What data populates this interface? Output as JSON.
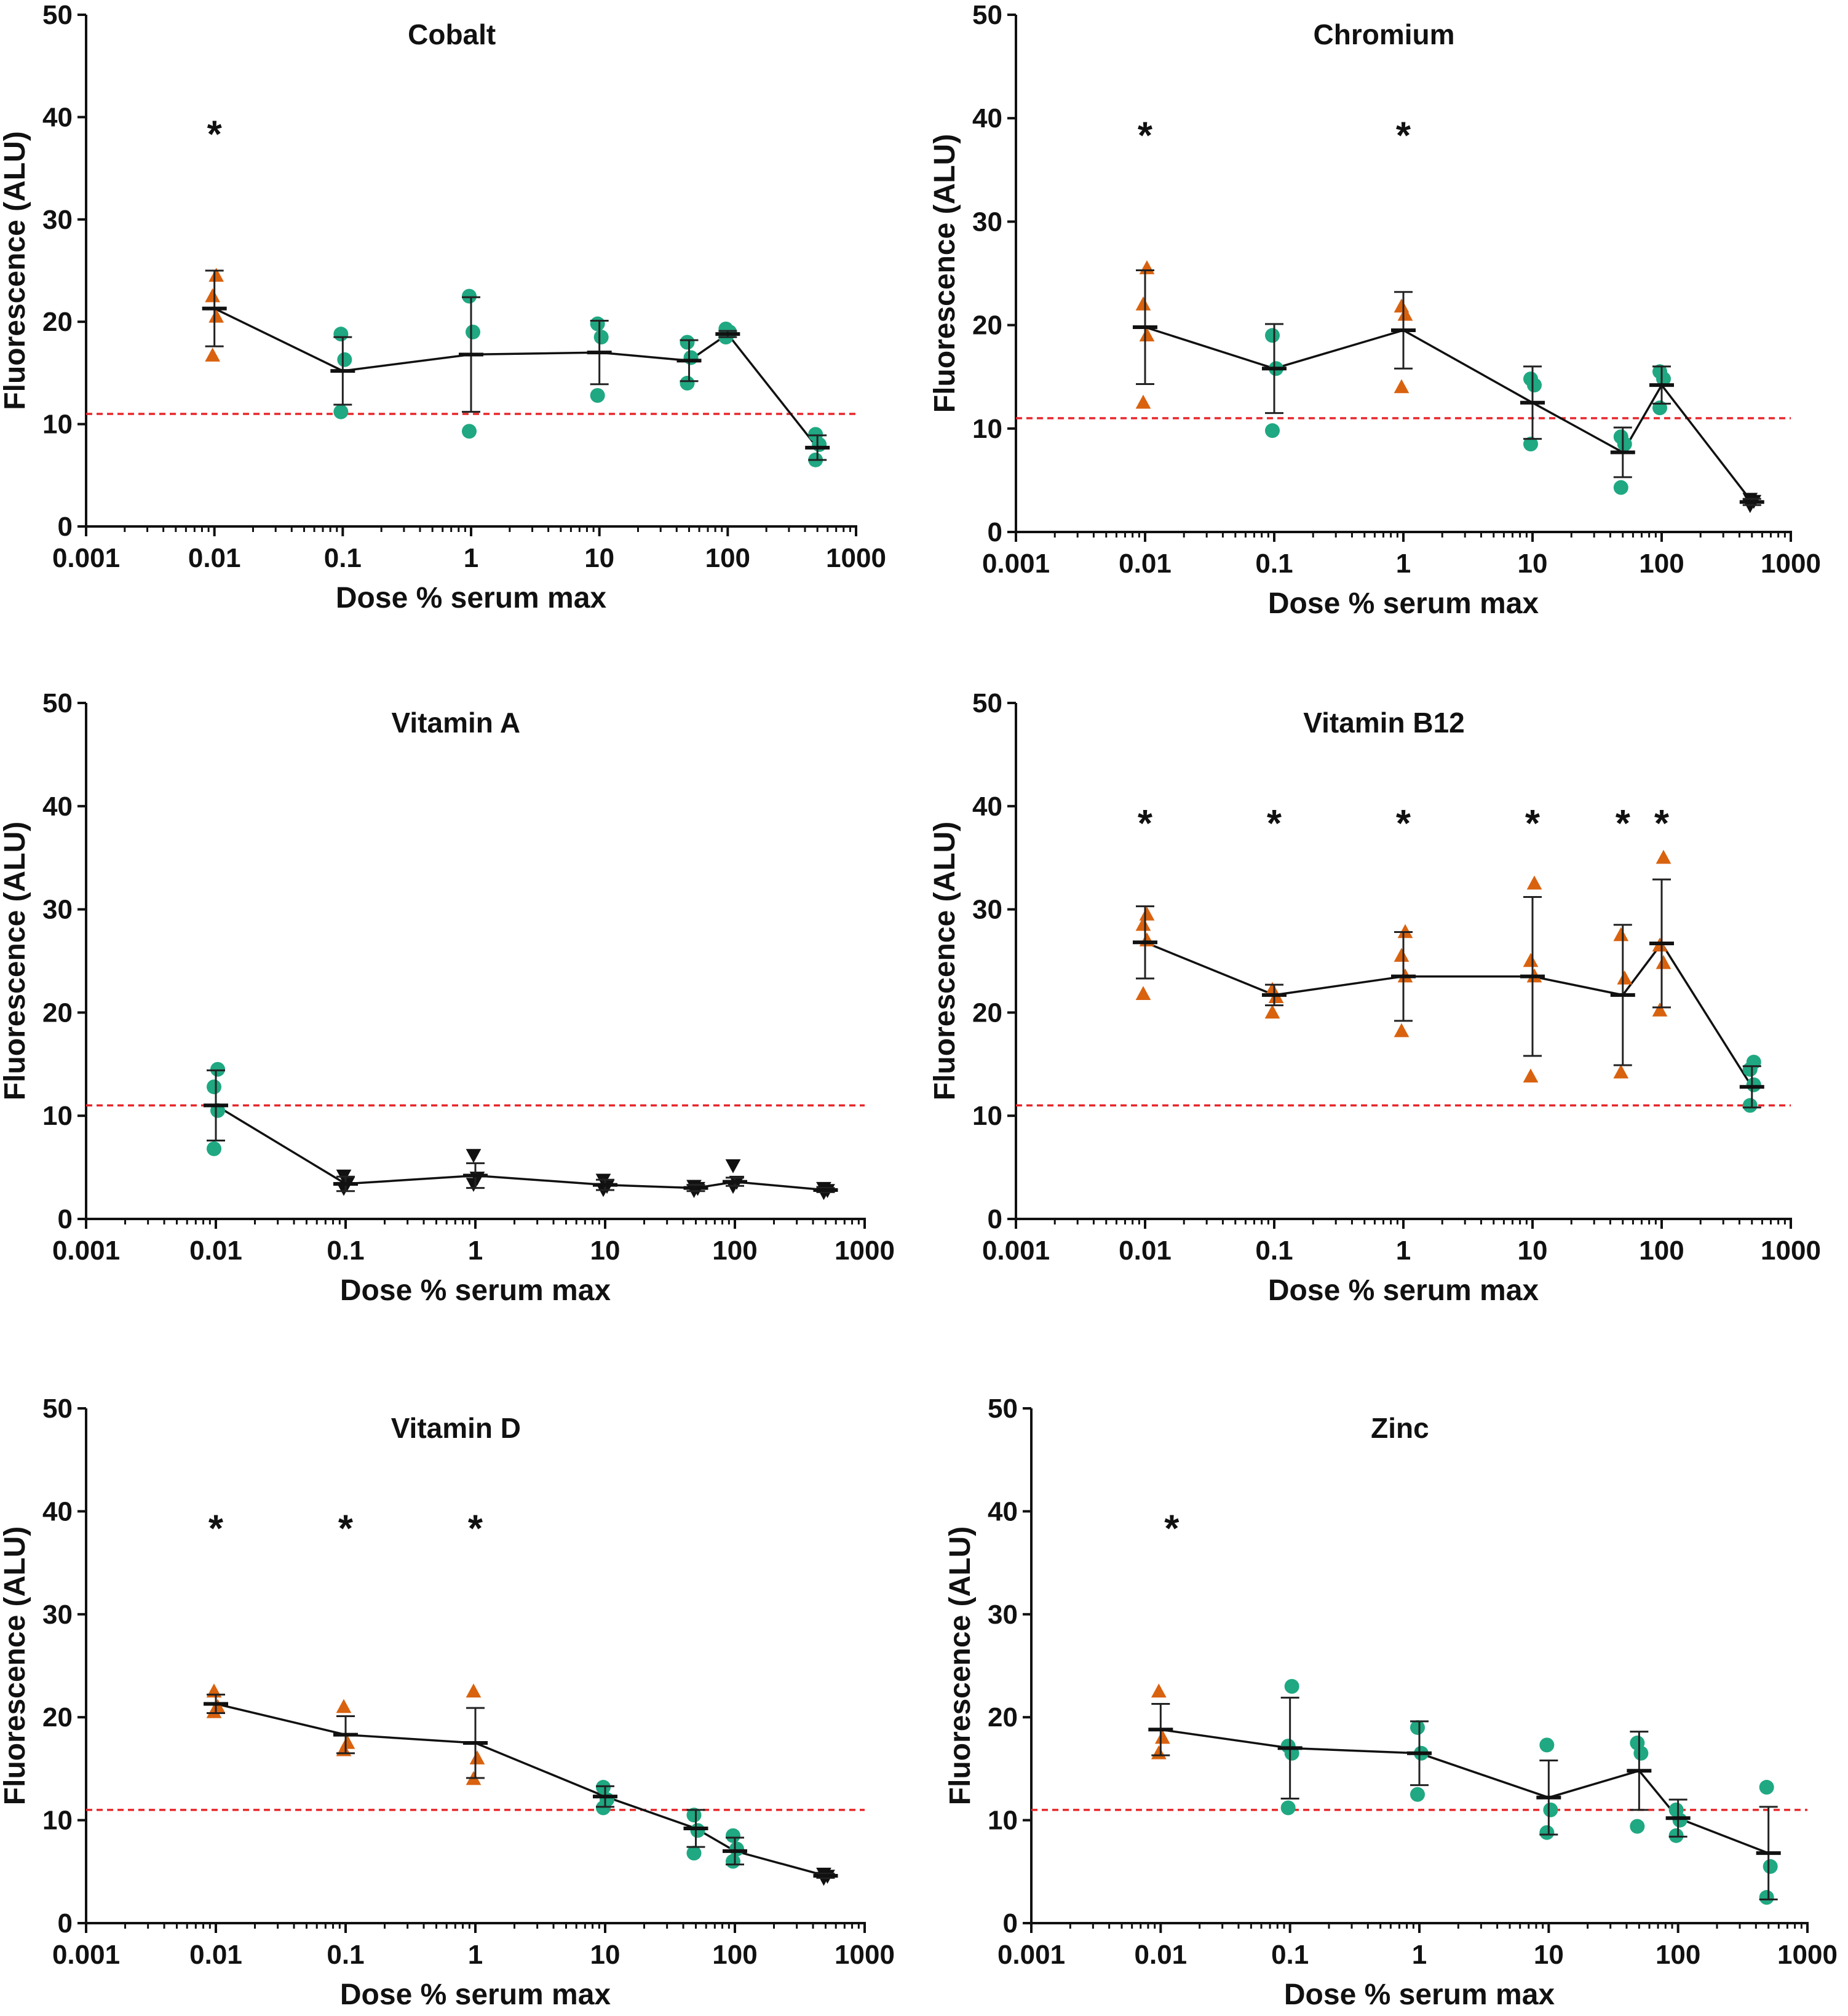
{
  "figure": {
    "ylabel": "Fluorescence (ALU)",
    "xlabel": "Dose % serum max"
  },
  "colors": {
    "significant": "#d9620f",
    "nonsignificant": "#1fa882",
    "low": "#111111",
    "threshold": "#e8262b",
    "line": "#111111"
  },
  "chart_data": [
    {
      "type": "scatter",
      "title": "Cobalt",
      "xlabel": "Dose % serum max",
      "ylabel": "Fluorescence (ALU)",
      "xscale": "log",
      "xlim": [
        0.001,
        1000
      ],
      "ylim": [
        0,
        50
      ],
      "xticks": [
        "0.001",
        "0.01",
        "0.1",
        "1",
        "10",
        "100",
        "1000"
      ],
      "yticks": [
        "0",
        "10",
        "20",
        "30",
        "40",
        "50"
      ],
      "threshold": 11,
      "stars": [
        0.01
      ],
      "doses": [
        {
          "x": 0.01,
          "mean": 21.3,
          "err": 3.7,
          "marker": "triangle",
          "points": [
            16.7,
            20.5,
            22.5,
            24.5
          ]
        },
        {
          "x": 0.1,
          "mean": 15.2,
          "err": 3.3,
          "marker": "circle",
          "points": [
            11.2,
            16.3,
            18.8
          ]
        },
        {
          "x": 1,
          "mean": 16.8,
          "err": 5.6,
          "marker": "circle",
          "points": [
            9.3,
            19.0,
            22.5
          ]
        },
        {
          "x": 10,
          "mean": 17.0,
          "err": 3.1,
          "marker": "circle",
          "points": [
            12.8,
            18.5,
            19.8
          ]
        },
        {
          "x": 50,
          "mean": 16.2,
          "err": 2.0,
          "marker": "circle",
          "points": [
            14.0,
            16.5,
            18.0
          ]
        },
        {
          "x": 100,
          "mean": 18.8,
          "err": 0.3,
          "marker": "circle",
          "points": [
            18.5,
            19.0,
            19.3
          ]
        },
        {
          "x": 500,
          "mean": 7.7,
          "err": 1.2,
          "marker": "circle",
          "points": [
            6.5,
            8.0,
            9.0
          ]
        }
      ]
    },
    {
      "type": "scatter",
      "title": "Chromium",
      "xlabel": "Dose % serum max",
      "ylabel": "Fluorescence (ALU)",
      "xscale": "log",
      "xlim": [
        0.001,
        1000
      ],
      "ylim": [
        0,
        50
      ],
      "xticks": [
        "0.001",
        "0.01",
        "0.1",
        "1",
        "10",
        "100",
        "1000"
      ],
      "yticks": [
        "0",
        "10",
        "20",
        "30",
        "40",
        "50"
      ],
      "threshold": 11,
      "stars": [
        0.01,
        1
      ],
      "doses": [
        {
          "x": 0.01,
          "mean": 19.8,
          "err": 5.5,
          "marker": "triangle",
          "points": [
            12.5,
            19.0,
            22.0,
            25.5
          ]
        },
        {
          "x": 0.1,
          "mean": 15.8,
          "err": 4.3,
          "marker": "circle",
          "points": [
            9.8,
            15.8,
            19.0
          ]
        },
        {
          "x": 1,
          "mean": 19.5,
          "err": 3.7,
          "marker": "triangle",
          "points": [
            14.0,
            21.0,
            21.8
          ]
        },
        {
          "x": 10,
          "mean": 12.5,
          "err": 3.5,
          "marker": "circle",
          "points": [
            8.5,
            14.2,
            14.8
          ]
        },
        {
          "x": 50,
          "mean": 7.7,
          "err": 2.4,
          "marker": "circle",
          "points": [
            4.3,
            8.5,
            9.2
          ]
        },
        {
          "x": 100,
          "mean": 14.2,
          "err": 1.8,
          "marker": "circle",
          "points": [
            12.0,
            14.8,
            15.5
          ]
        },
        {
          "x": 500,
          "mean": 2.9,
          "err": 0.3,
          "marker": "invtriangle",
          "points": [
            2.6,
            3.0,
            3.2
          ]
        }
      ]
    },
    {
      "type": "scatter",
      "title": "Vitamin A",
      "xlabel": "Dose % serum max",
      "ylabel": "Fluorescence (ALU)",
      "xscale": "log",
      "xlim": [
        0.001,
        1000
      ],
      "ylim": [
        0,
        50
      ],
      "xticks": [
        "0.001",
        "0.01",
        "0.1",
        "1",
        "10",
        "100",
        "1000"
      ],
      "yticks": [
        "0",
        "10",
        "20",
        "30",
        "40",
        "50"
      ],
      "threshold": 11,
      "stars": [],
      "doses": [
        {
          "x": 0.01,
          "mean": 11.0,
          "err": 3.4,
          "marker": "circle",
          "points": [
            6.8,
            10.5,
            12.8,
            14.5
          ]
        },
        {
          "x": 0.1,
          "mean": 3.4,
          "err": 0.7,
          "marker": "invtriangle",
          "points": [
            3.0,
            3.5,
            4.2
          ]
        },
        {
          "x": 1,
          "mean": 4.2,
          "err": 1.2,
          "marker": "invtriangle",
          "points": [
            3.4,
            4.0,
            6.2
          ]
        },
        {
          "x": 10,
          "mean": 3.3,
          "err": 0.5,
          "marker": "invtriangle",
          "points": [
            2.9,
            3.2,
            3.8
          ]
        },
        {
          "x": 50,
          "mean": 3.0,
          "err": 0.3,
          "marker": "invtriangle",
          "points": [
            2.8,
            3.0,
            3.2
          ]
        },
        {
          "x": 100,
          "mean": 3.6,
          "err": 0.4,
          "marker": "invtriangle",
          "points": [
            3.2,
            3.6,
            5.2
          ]
        },
        {
          "x": 500,
          "mean": 2.8,
          "err": 0.2,
          "marker": "invtriangle",
          "points": [
            2.6,
            2.8,
            3.0
          ]
        }
      ]
    },
    {
      "type": "scatter",
      "title": "Vitamin B12",
      "xlabel": "Dose % serum max",
      "ylabel": "Fluorescence (ALU)",
      "xscale": "log",
      "xlim": [
        0.001,
        1000
      ],
      "ylim": [
        0,
        50
      ],
      "xticks": [
        "0.001",
        "0.01",
        "0.1",
        "1",
        "10",
        "100",
        "1000"
      ],
      "yticks": [
        "0",
        "10",
        "20",
        "30",
        "40",
        "50"
      ],
      "threshold": 11,
      "stars": [
        0.01,
        0.1,
        1,
        10,
        50,
        100
      ],
      "doses": [
        {
          "x": 0.01,
          "mean": 26.8,
          "err": 3.5,
          "marker": "triangle",
          "points": [
            21.8,
            27.0,
            28.5,
            29.5
          ]
        },
        {
          "x": 0.1,
          "mean": 21.7,
          "err": 1.0,
          "marker": "triangle",
          "points": [
            20.0,
            21.5,
            22.2
          ]
        },
        {
          "x": 1,
          "mean": 23.5,
          "err": 4.3,
          "marker": "triangle",
          "points": [
            18.2,
            23.5,
            25.5,
            27.8
          ]
        },
        {
          "x": 10,
          "mean": 23.5,
          "err": 7.7,
          "marker": "triangle",
          "points": [
            13.8,
            23.5,
            25.0,
            32.5
          ]
        },
        {
          "x": 50,
          "mean": 21.7,
          "err": 6.8,
          "marker": "triangle",
          "points": [
            14.2,
            23.3,
            27.5
          ]
        },
        {
          "x": 100,
          "mean": 26.7,
          "err": 6.2,
          "marker": "triangle",
          "points": [
            20.2,
            24.8,
            26.5,
            35.0
          ]
        },
        {
          "x": 500,
          "mean": 12.8,
          "err": 2.0,
          "marker": "circle",
          "points": [
            11.0,
            13.0,
            14.5,
            15.2
          ]
        }
      ]
    },
    {
      "type": "scatter",
      "title": "Vitamin D",
      "xlabel": "Dose % serum max",
      "ylabel": "Fluorescence (ALU)",
      "xscale": "log",
      "xlim": [
        0.001,
        1000
      ],
      "ylim": [
        0,
        50
      ],
      "xticks": [
        "0.001",
        "0.01",
        "0.1",
        "1",
        "10",
        "100",
        "1000"
      ],
      "yticks": [
        "0",
        "10",
        "20",
        "30",
        "40",
        "50"
      ],
      "threshold": 11,
      "stars": [
        0.01,
        0.1,
        1
      ],
      "doses": [
        {
          "x": 0.01,
          "mean": 21.3,
          "err": 0.9,
          "marker": "triangle",
          "points": [
            20.5,
            21.0,
            22.5
          ]
        },
        {
          "x": 0.1,
          "mean": 18.3,
          "err": 1.8,
          "marker": "triangle",
          "points": [
            16.8,
            17.5,
            21.0
          ]
        },
        {
          "x": 1,
          "mean": 17.5,
          "err": 3.4,
          "marker": "triangle",
          "points": [
            14.0,
            16.0,
            22.5
          ]
        },
        {
          "x": 10,
          "mean": 12.3,
          "err": 1.0,
          "marker": "circle",
          "points": [
            11.2,
            12.0,
            13.2
          ]
        },
        {
          "x": 50,
          "mean": 9.2,
          "err": 1.8,
          "marker": "circle",
          "points": [
            6.8,
            9.0,
            10.5
          ]
        },
        {
          "x": 100,
          "mean": 7.0,
          "err": 1.3,
          "marker": "circle",
          "points": [
            6.0,
            7.2,
            8.5
          ]
        },
        {
          "x": 500,
          "mean": 4.6,
          "err": 0.2,
          "marker": "invtriangle",
          "points": [
            4.4,
            4.6,
            4.8
          ]
        }
      ]
    },
    {
      "type": "scatter",
      "title": "Zinc",
      "xlabel": "Dose % serum max",
      "ylabel": "Fluorescence (ALU)",
      "xscale": "log",
      "xlim": [
        0.001,
        1000
      ],
      "ylim": [
        0,
        50
      ],
      "xticks": [
        "0.001",
        "0.01",
        "0.1",
        "1",
        "10",
        "100",
        "1000"
      ],
      "yticks": [
        "0",
        "10",
        "20",
        "30",
        "40",
        "50"
      ],
      "threshold": 11,
      "stars": [
        0.01
      ],
      "doses": [
        {
          "x": 0.01,
          "mean": 18.8,
          "err": 2.5,
          "marker": "triangle",
          "points": [
            16.5,
            18.0,
            22.5
          ]
        },
        {
          "x": 0.1,
          "mean": 17.0,
          "err": 4.9,
          "marker": "circle",
          "points": [
            11.2,
            16.5,
            17.2,
            23.0
          ]
        },
        {
          "x": 1,
          "mean": 16.5,
          "err": 3.1,
          "marker": "circle",
          "points": [
            12.5,
            16.5,
            19.0
          ]
        },
        {
          "x": 10,
          "mean": 12.2,
          "err": 3.6,
          "marker": "circle",
          "points": [
            8.8,
            11.0,
            17.3
          ]
        },
        {
          "x": 50,
          "mean": 14.8,
          "err": 3.8,
          "marker": "circle",
          "points": [
            9.4,
            16.5,
            17.5
          ]
        },
        {
          "x": 100,
          "mean": 10.2,
          "err": 1.8,
          "marker": "circle",
          "points": [
            8.5,
            10.0,
            11.0
          ]
        },
        {
          "x": 500,
          "mean": 6.8,
          "err": 4.5,
          "marker": "circle",
          "points": [
            2.5,
            5.5,
            13.2
          ]
        }
      ]
    }
  ]
}
